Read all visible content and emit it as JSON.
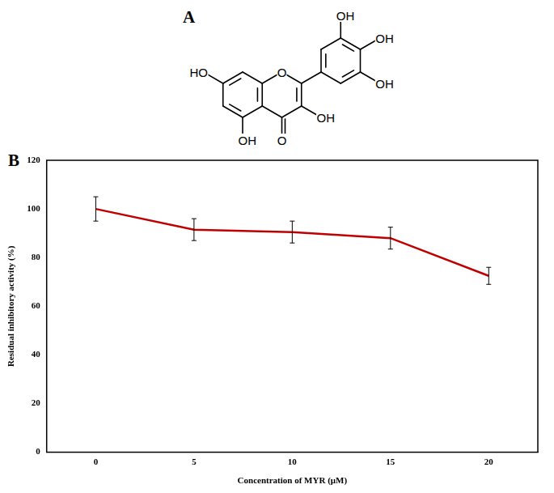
{
  "panel_labels": [
    "A",
    "B"
  ],
  "structure": {
    "ring_oxygen": "O",
    "carbonyl_oxygen": "O",
    "hydroxyls": [
      "HO",
      "OH",
      "OH",
      "OH",
      "OH",
      "OH"
    ]
  },
  "chart_data": {
    "type": "line",
    "x_label": "Concentration of MYR (μM)",
    "y_label": "Residual inhibitory activity (%)",
    "categories": [
      "0",
      "5",
      "10",
      "15",
      "20"
    ],
    "values": [
      100,
      91.5,
      90.5,
      88,
      72.5
    ],
    "errors": [
      5,
      4.5,
      4.5,
      4.5,
      3.5
    ],
    "color": "#c00000",
    "ylim": [
      0,
      120
    ],
    "yticks": [
      0,
      20,
      40,
      60,
      80,
      100,
      120
    ],
    "grid": false
  }
}
